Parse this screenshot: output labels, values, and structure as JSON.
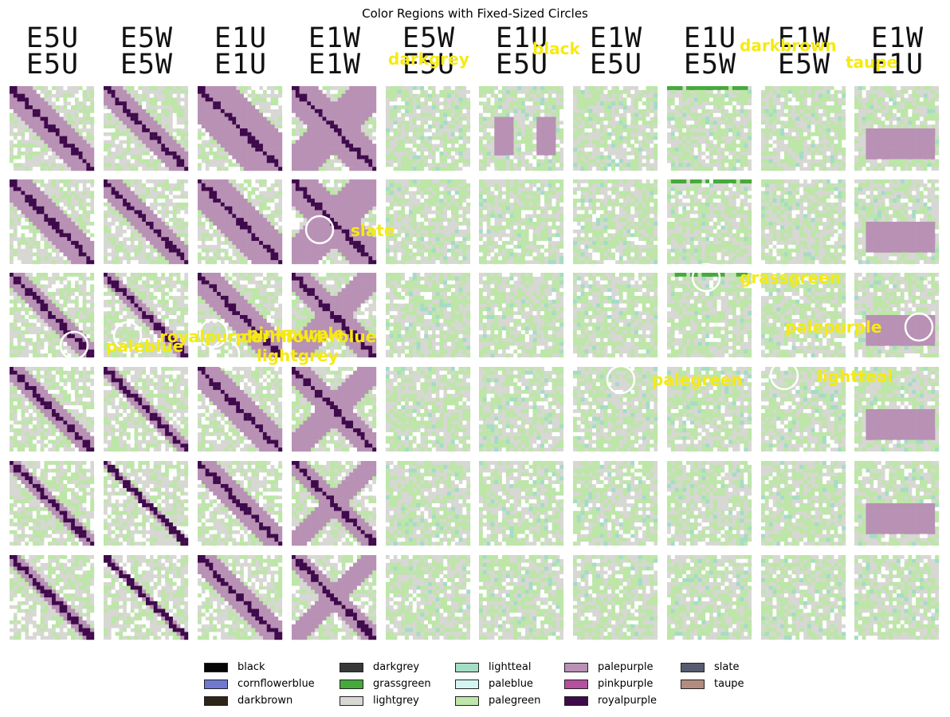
{
  "chart_data": {
    "type": "heatmap",
    "title": "Color Regions with Fixed-Sized Circles",
    "columns": [
      {
        "top": "E5U",
        "bottom": "E5U"
      },
      {
        "top": "E5W",
        "bottom": "E5W"
      },
      {
        "top": "E1U",
        "bottom": "E1U"
      },
      {
        "top": "E1W",
        "bottom": "E1W"
      },
      {
        "top": "E5W",
        "bottom": "E5U"
      },
      {
        "top": "E1U",
        "bottom": "E5U"
      },
      {
        "top": "E1W",
        "bottom": "E5U"
      },
      {
        "top": "E1U",
        "bottom": "E5W"
      },
      {
        "top": "E1W",
        "bottom": "E5W"
      },
      {
        "top": "E1W",
        "bottom": "E1U"
      }
    ],
    "rows": 6,
    "annotations": [
      {
        "label": "darkgrey",
        "col": 4,
        "row": "header"
      },
      {
        "label": "black",
        "col": 5,
        "row": "header"
      },
      {
        "label": "darkbrown",
        "col": 8,
        "row": "header"
      },
      {
        "label": "taupe",
        "col": 9,
        "row": "header"
      },
      {
        "label": "slate",
        "col": 3,
        "row": 1
      },
      {
        "label": "grassgreen",
        "col": 7,
        "row": 2
      },
      {
        "label": "paleblue",
        "col": 0,
        "row": 2
      },
      {
        "label": "royalpurple",
        "col": 1,
        "row": 2
      },
      {
        "label": "pinkpurple",
        "col": 2,
        "row": 2
      },
      {
        "label": "cornflowerblue",
        "col": 2,
        "row": 2
      },
      {
        "label": "lightgrey",
        "col": 2,
        "row": 2
      },
      {
        "label": "palepurple",
        "col": 9,
        "row": 2
      },
      {
        "label": "palegreen",
        "col": 6,
        "row": 3
      },
      {
        "label": "lightteal",
        "col": 8,
        "row": 3
      }
    ],
    "legend": {
      "placement": "bottom-center",
      "entries": [
        {
          "name": "black",
          "color": "#060606"
        },
        {
          "name": "cornflowerblue",
          "color": "#7079cf"
        },
        {
          "name": "darkbrown",
          "color": "#2e2418"
        },
        {
          "name": "darkgrey",
          "color": "#383838"
        },
        {
          "name": "grassgreen",
          "color": "#46a93b"
        },
        {
          "name": "lightgrey",
          "color": "#d7d7d3"
        },
        {
          "name": "lightteal",
          "color": "#a4dcc6"
        },
        {
          "name": "paleblue",
          "color": "#d3f5f1"
        },
        {
          "name": "palegreen",
          "color": "#bde6a8"
        },
        {
          "name": "palepurple",
          "color": "#b891b5"
        },
        {
          "name": "pinkpurple",
          "color": "#b5509e"
        },
        {
          "name": "royalpurple",
          "color": "#3f0a4b"
        },
        {
          "name": "slate",
          "color": "#575b70"
        },
        {
          "name": "taupe",
          "color": "#b38c80"
        }
      ]
    }
  }
}
